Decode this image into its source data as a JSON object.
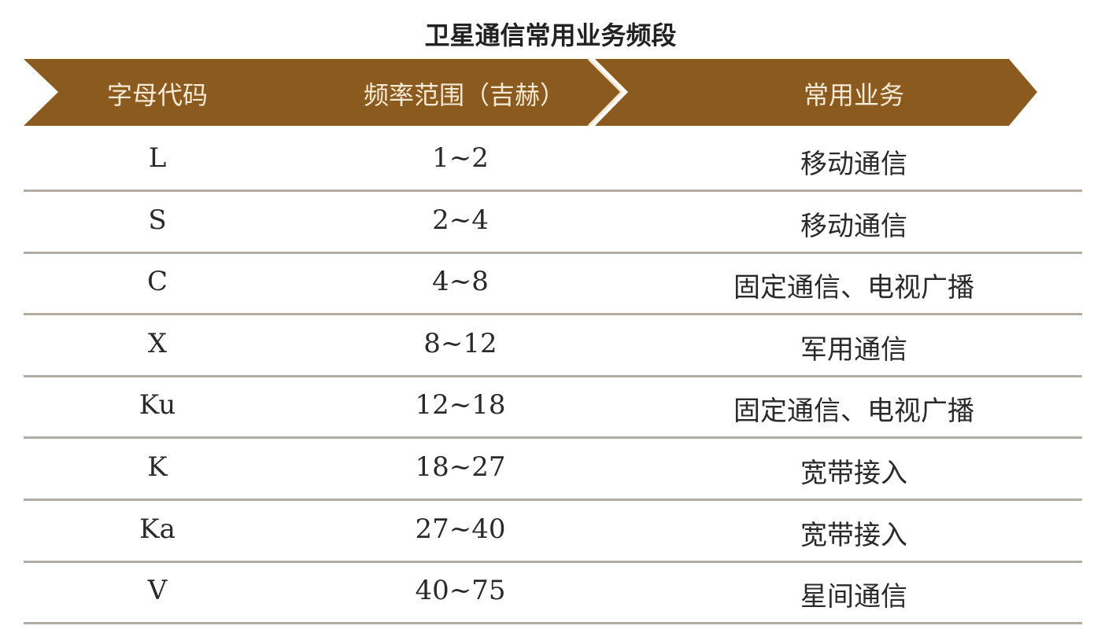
{
  "title": "卫星通信常用业务频段",
  "header_color": "#8b5a1e",
  "columns": [
    "字母代码",
    "频率范围（吉赫）",
    "常用业务"
  ],
  "rows": [
    {
      "code": "L",
      "range": "1~2",
      "service": "移动通信"
    },
    {
      "code": "S",
      "range": "2~4",
      "service": "移动通信"
    },
    {
      "code": "C",
      "range": "4~8",
      "service": "固定通信、电视广播"
    },
    {
      "code": "X",
      "range": "8~12",
      "service": "军用通信"
    },
    {
      "code": "Ku",
      "range": "12~18",
      "service": "固定通信、电视广播"
    },
    {
      "code": "K",
      "range": "18~27",
      "service": "宽带接入"
    },
    {
      "code": "Ka",
      "range": "27~40",
      "service": "宽带接入"
    },
    {
      "code": "V",
      "range": "40~75",
      "service": "星间通信"
    }
  ]
}
